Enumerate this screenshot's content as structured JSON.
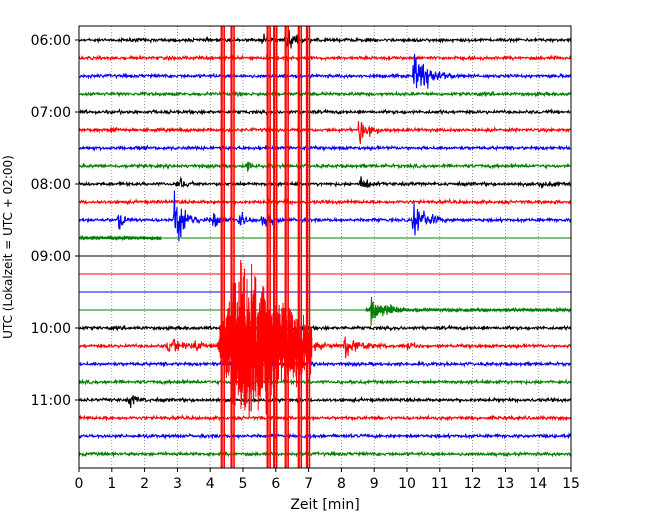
{
  "chart_data": {
    "type": "line",
    "title": "",
    "xlabel": "Zeit  [min]",
    "ylabel": "UTC (Lokalzeit = UTC + 02:00)",
    "xlim": [
      0,
      15
    ],
    "x_ticks": [
      0,
      1,
      2,
      3,
      4,
      5,
      6,
      7,
      8,
      9,
      10,
      11,
      12,
      13,
      14,
      15
    ],
    "x_tick_labels": [
      "0",
      "1",
      "2",
      "3",
      "4",
      "5",
      "6",
      "7",
      "8",
      "9",
      "10",
      "11",
      "12",
      "13",
      "14",
      "15"
    ],
    "y_ticks": [
      "06:00",
      "07:00",
      "08:00",
      "09:00",
      "10:00",
      "11:00"
    ],
    "grid": "vertical dotted",
    "trace_interval_minutes": 15,
    "colors": [
      "#000000",
      "#ff0000",
      "#0000ff",
      "#008000"
    ],
    "traces": [
      {
        "time": "06:00",
        "color": "#000000",
        "state": "noise",
        "events": [
          {
            "t": 6.3,
            "amp": 2.0,
            "dur": 0.5
          },
          {
            "t": 5.6,
            "amp": 1.0,
            "dur": 0.2
          }
        ]
      },
      {
        "time": "06:15",
        "color": "#ff0000",
        "state": "noise",
        "events": []
      },
      {
        "time": "06:30",
        "color": "#0000ff",
        "state": "noise",
        "events": [
          {
            "t": 10.2,
            "amp": 3.0,
            "dur": 0.8
          }
        ]
      },
      {
        "time": "06:45",
        "color": "#008000",
        "state": "noise",
        "events": []
      },
      {
        "time": "07:00",
        "color": "#000000",
        "state": "noise",
        "events": []
      },
      {
        "time": "07:15",
        "color": "#ff0000",
        "state": "noise",
        "events": [
          {
            "t": 8.55,
            "amp": 2.2,
            "dur": 0.5
          },
          {
            "t": 1.0,
            "amp": 0.6,
            "dur": 0.3
          }
        ]
      },
      {
        "time": "07:30",
        "color": "#0000ff",
        "state": "noise",
        "events": []
      },
      {
        "time": "07:45",
        "color": "#008000",
        "state": "noise",
        "events": [
          {
            "t": 5.1,
            "amp": 1.2,
            "dur": 0.2
          }
        ]
      },
      {
        "time": "08:00",
        "color": "#000000",
        "state": "noise",
        "events": [
          {
            "t": 3.0,
            "amp": 1.3,
            "dur": 0.3
          },
          {
            "t": 8.6,
            "amp": 1.4,
            "dur": 0.3
          },
          {
            "t": 14.0,
            "amp": 0.6,
            "dur": 0.8
          }
        ]
      },
      {
        "time": "08:15",
        "color": "#ff0000",
        "state": "noise",
        "events": []
      },
      {
        "time": "08:30",
        "color": "#0000ff",
        "state": "noise",
        "events": [
          {
            "t": 1.2,
            "amp": 1.5,
            "dur": 0.3
          },
          {
            "t": 2.9,
            "amp": 3.2,
            "dur": 0.6
          },
          {
            "t": 4.1,
            "amp": 1.3,
            "dur": 0.3
          },
          {
            "t": 4.9,
            "amp": 2.0,
            "dur": 0.3
          },
          {
            "t": 5.6,
            "amp": 1.6,
            "dur": 0.4
          },
          {
            "t": 10.2,
            "amp": 2.5,
            "dur": 0.6
          }
        ]
      },
      {
        "time": "08:45",
        "color": "#008000",
        "state": "ends",
        "end": 2.5,
        "events": []
      },
      {
        "time": "09:00",
        "color": "#000000",
        "state": "flat",
        "events": []
      },
      {
        "time": "09:15",
        "color": "#ff0000",
        "state": "flat",
        "events": []
      },
      {
        "time": "09:30",
        "color": "#0000ff",
        "state": "flat",
        "events": []
      },
      {
        "time": "09:45",
        "color": "#008000",
        "state": "starts",
        "start": 8.75,
        "events": [
          {
            "t": 8.9,
            "amp": 1.6,
            "dur": 0.6
          },
          {
            "t": 9.4,
            "amp": 1.0,
            "dur": 0.4
          }
        ]
      },
      {
        "time": "10:00",
        "color": "#000000",
        "state": "noise",
        "events": []
      },
      {
        "time": "10:15",
        "color": "#ff0000",
        "state": "quake",
        "events": [
          {
            "t": 2.7,
            "amp": 1.2,
            "dur": 0.9
          },
          {
            "t": 3.5,
            "amp": 1.2,
            "dur": 0.6
          },
          {
            "t": 4.3,
            "amp": 3.0,
            "dur": 1.0
          },
          {
            "t": 5.8,
            "amp": 3.0,
            "dur": 1.3
          },
          {
            "t": 8.1,
            "amp": 1.5,
            "dur": 0.9
          },
          {
            "t": 10.0,
            "amp": 0.6,
            "dur": 0.6
          }
        ]
      },
      {
        "time": "10:30",
        "color": "#0000ff",
        "state": "noise",
        "events": []
      },
      {
        "time": "10:45",
        "color": "#008000",
        "state": "noise",
        "events": []
      },
      {
        "time": "11:00",
        "color": "#000000",
        "state": "noise",
        "events": [
          {
            "t": 1.55,
            "amp": 1.3,
            "dur": 0.3
          }
        ]
      },
      {
        "time": "11:15",
        "color": "#ff0000",
        "state": "noise",
        "events": []
      },
      {
        "time": "11:30",
        "color": "#0000ff",
        "state": "noise",
        "events": []
      },
      {
        "time": "11:45",
        "color": "#008000",
        "state": "noise",
        "events": []
      }
    ],
    "overflow_spikes": [
      {
        "t": 4.35,
        "color": "#ff0000"
      },
      {
        "t": 4.65,
        "color": "#ff0000"
      },
      {
        "t": 5.75,
        "color": "#ff0000"
      },
      {
        "t": 5.95,
        "color": "#ff0000"
      },
      {
        "t": 6.3,
        "color": "#ff0000"
      },
      {
        "t": 6.7,
        "color": "#ff0000"
      },
      {
        "t": 6.95,
        "color": "#ff0000"
      }
    ]
  }
}
